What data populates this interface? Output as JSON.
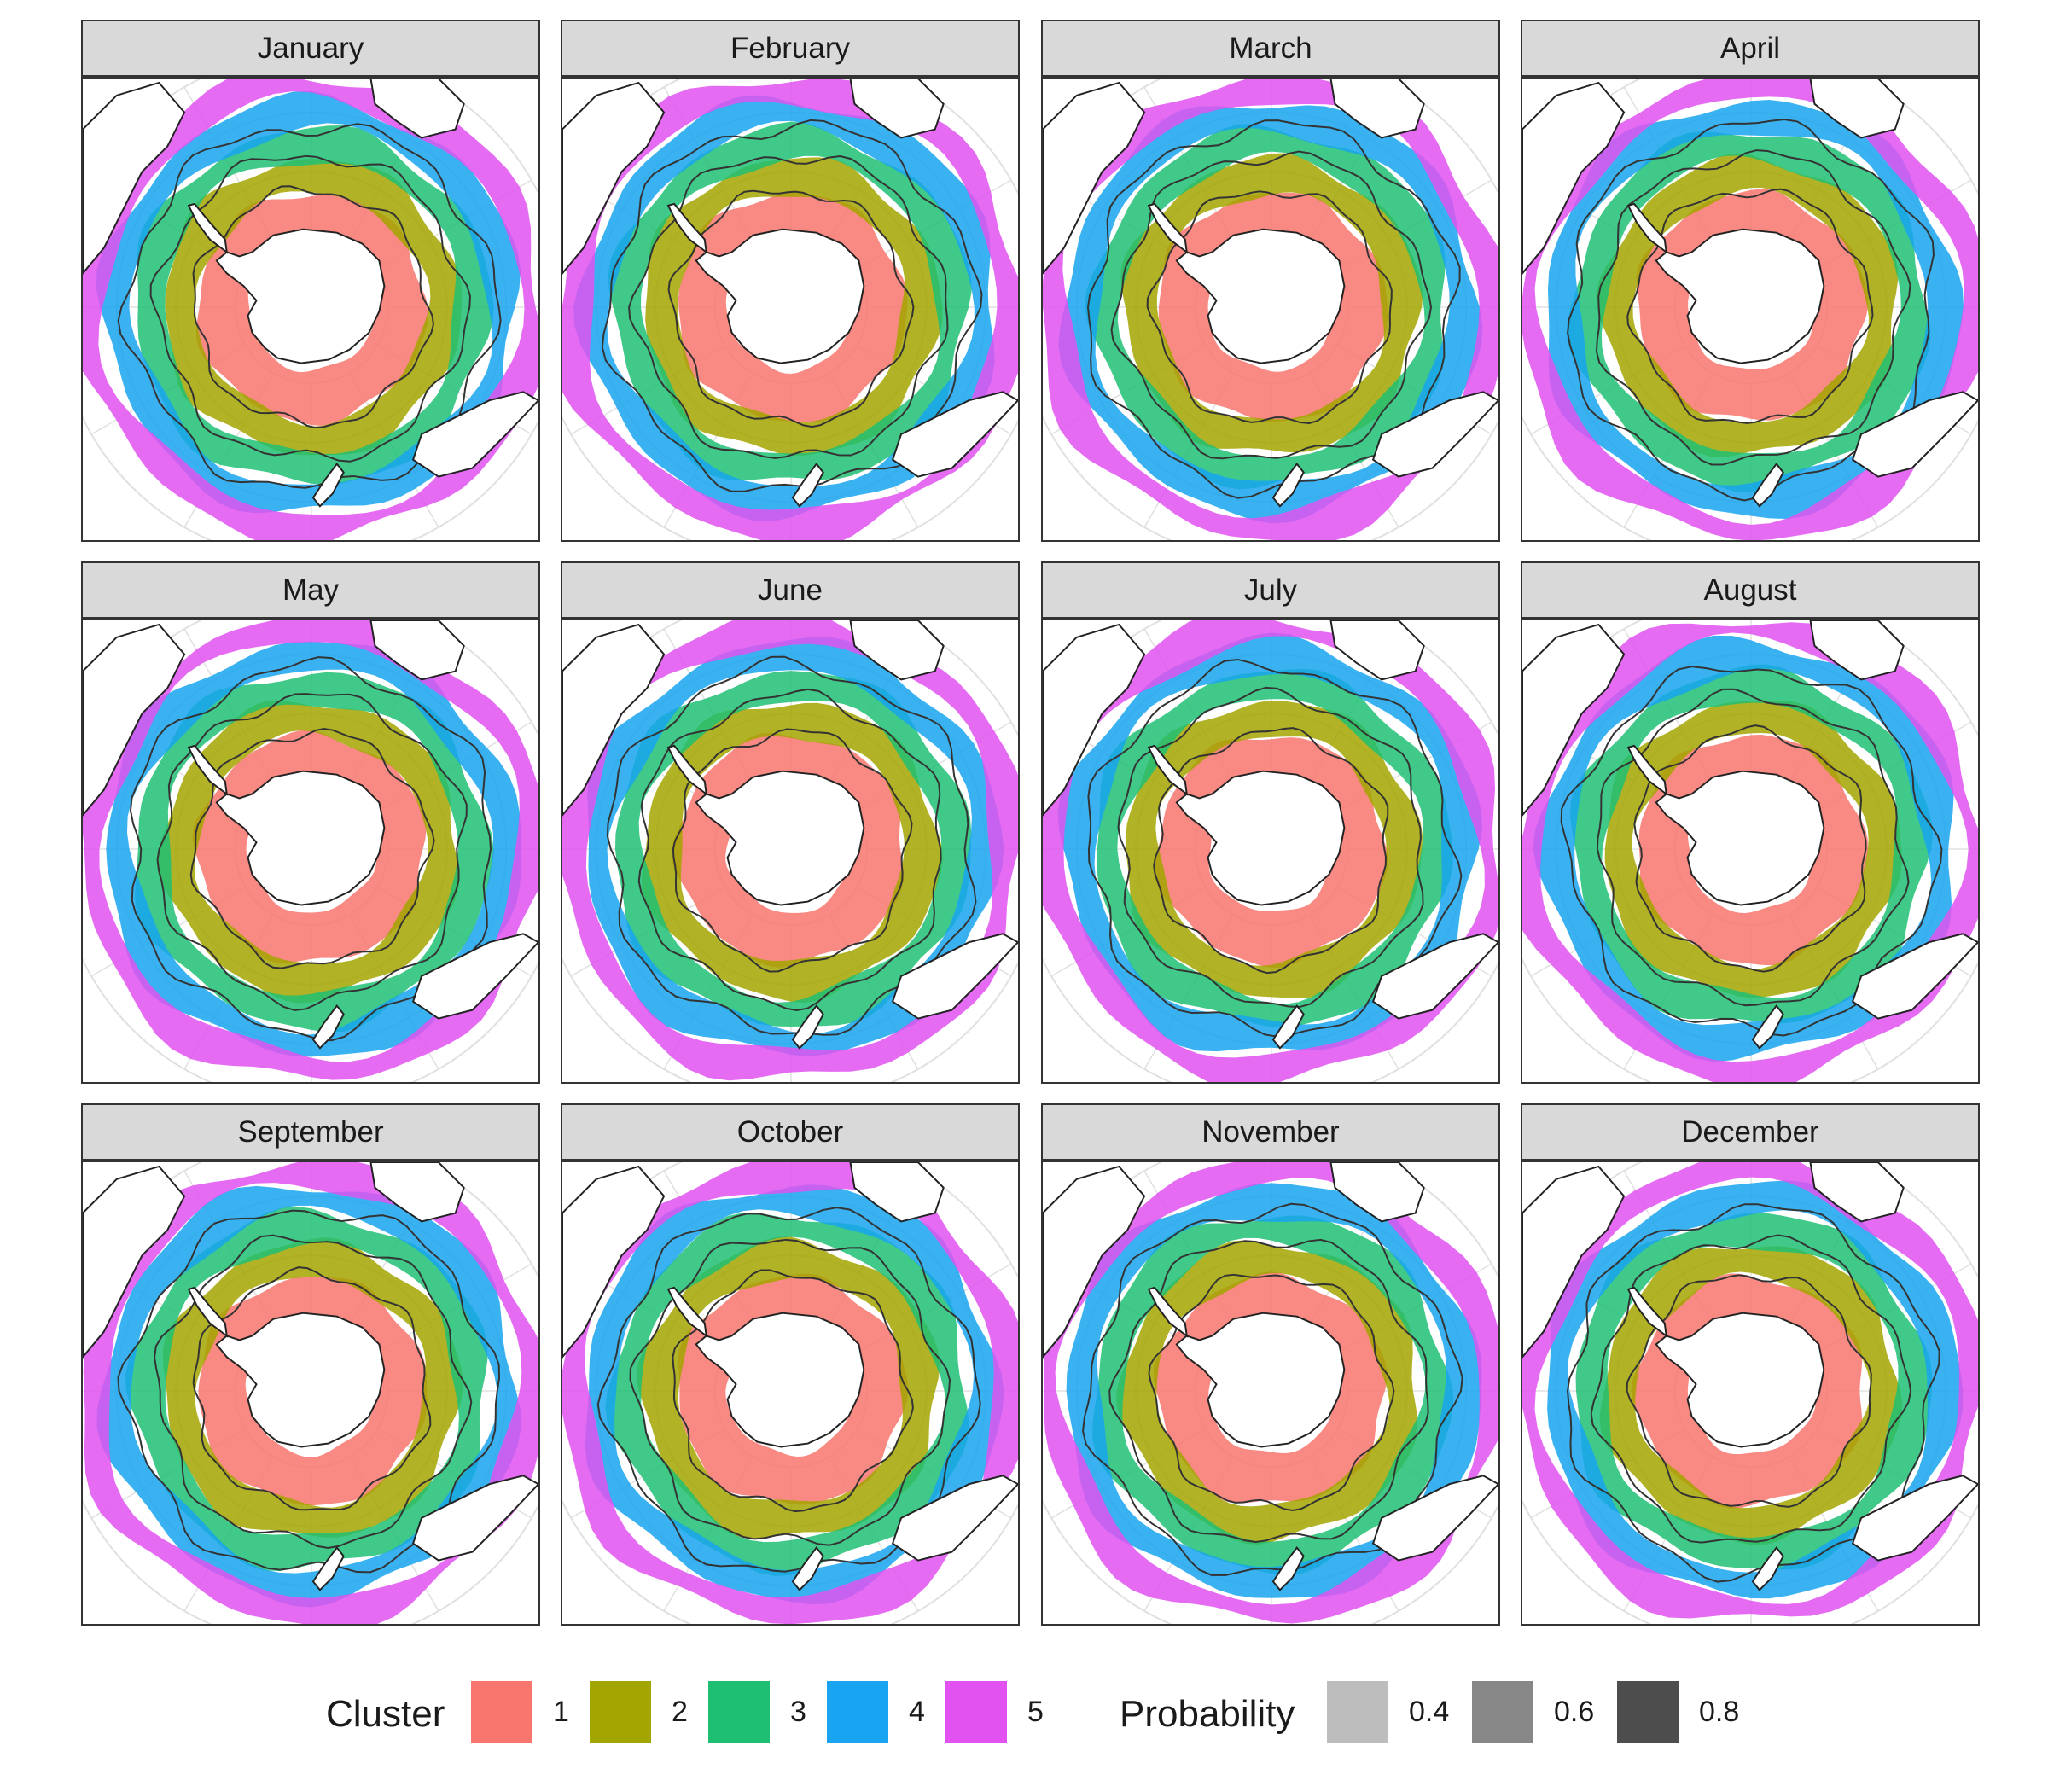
{
  "map_data": {
    "type": "faceted_polar_map",
    "projection": "south-polar stereographic",
    "panels": [
      {
        "month": "January",
        "rings": [
          1,
          2,
          3,
          4,
          5
        ]
      },
      {
        "month": "February",
        "rings": [
          1,
          2,
          3,
          4,
          5
        ]
      },
      {
        "month": "March",
        "rings": [
          1,
          2,
          3,
          4,
          5
        ]
      },
      {
        "month": "April",
        "rings": [
          1,
          2,
          3,
          4,
          5
        ]
      },
      {
        "month": "May",
        "rings": [
          1,
          2,
          3,
          4,
          5
        ]
      },
      {
        "month": "June",
        "rings": [
          1,
          2,
          3,
          4,
          5
        ]
      },
      {
        "month": "July",
        "rings": [
          1,
          2,
          3,
          4,
          5
        ]
      },
      {
        "month": "August",
        "rings": [
          1,
          2,
          3,
          4,
          5
        ]
      },
      {
        "month": "September",
        "rings": [
          1,
          2,
          3,
          4,
          5
        ]
      },
      {
        "month": "October",
        "rings": [
          1,
          2,
          3,
          4,
          5
        ]
      },
      {
        "month": "November",
        "rings": [
          1,
          2,
          3,
          4,
          5
        ]
      },
      {
        "month": "December",
        "rings": [
          1,
          2,
          3,
          4,
          5
        ]
      }
    ]
  },
  "legend": {
    "cluster_title": "Cluster",
    "clusters": [
      {
        "label": "1",
        "color": "#F8766D"
      },
      {
        "label": "2",
        "color": "#A3A500"
      },
      {
        "label": "3",
        "color": "#1FBF73"
      },
      {
        "label": "4",
        "color": "#18A4F0"
      },
      {
        "label": "5",
        "color": "#E152F0"
      }
    ],
    "probability_title": "Probability",
    "probabilities": [
      {
        "label": "0.4",
        "color": "#bdbdbd"
      },
      {
        "label": "0.6",
        "color": "#878787"
      },
      {
        "label": "0.8",
        "color": "#4d4d4d"
      }
    ]
  },
  "colors": {
    "land": "#ffffff",
    "coastline": "#222222",
    "graticule": "#e0e0e0",
    "front_line": "#333333"
  }
}
